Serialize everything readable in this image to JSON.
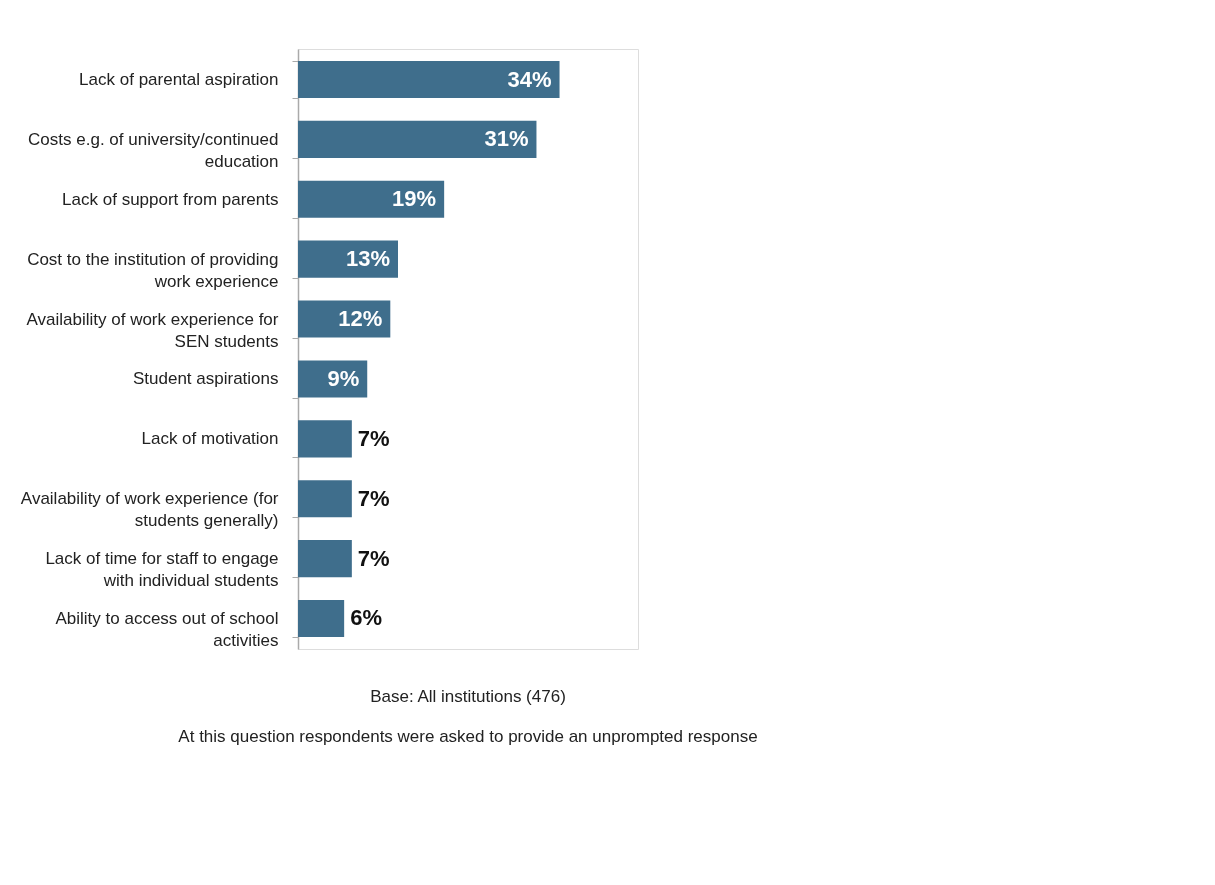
{
  "chart_data": {
    "type": "bar",
    "orientation": "horizontal",
    "data_labels": true,
    "color": "#3f6e8c",
    "categories": [
      "Lack of parental aspiration",
      "Costs e.g. of university/continued education",
      "Lack of support from parents",
      "Cost to the institution of providing work experience",
      "Availability of work experience for SEN students",
      "Student aspirations",
      "Lack of motivation",
      "Availability of work experience (for students generally)",
      "Lack of time for staff to engage with individual students",
      "Ability to access out of school activities"
    ],
    "values": [
      34,
      31,
      19,
      13,
      12,
      9,
      7,
      7,
      7,
      6
    ],
    "value_labels": [
      "34%",
      "31%",
      "19%",
      "13%",
      "12%",
      "9%",
      "7%",
      "7%",
      "7%",
      "6%"
    ],
    "annotations": [
      "Base: All institutions (476)",
      "At this question respondents were asked to provide an unprompted  response"
    ]
  }
}
